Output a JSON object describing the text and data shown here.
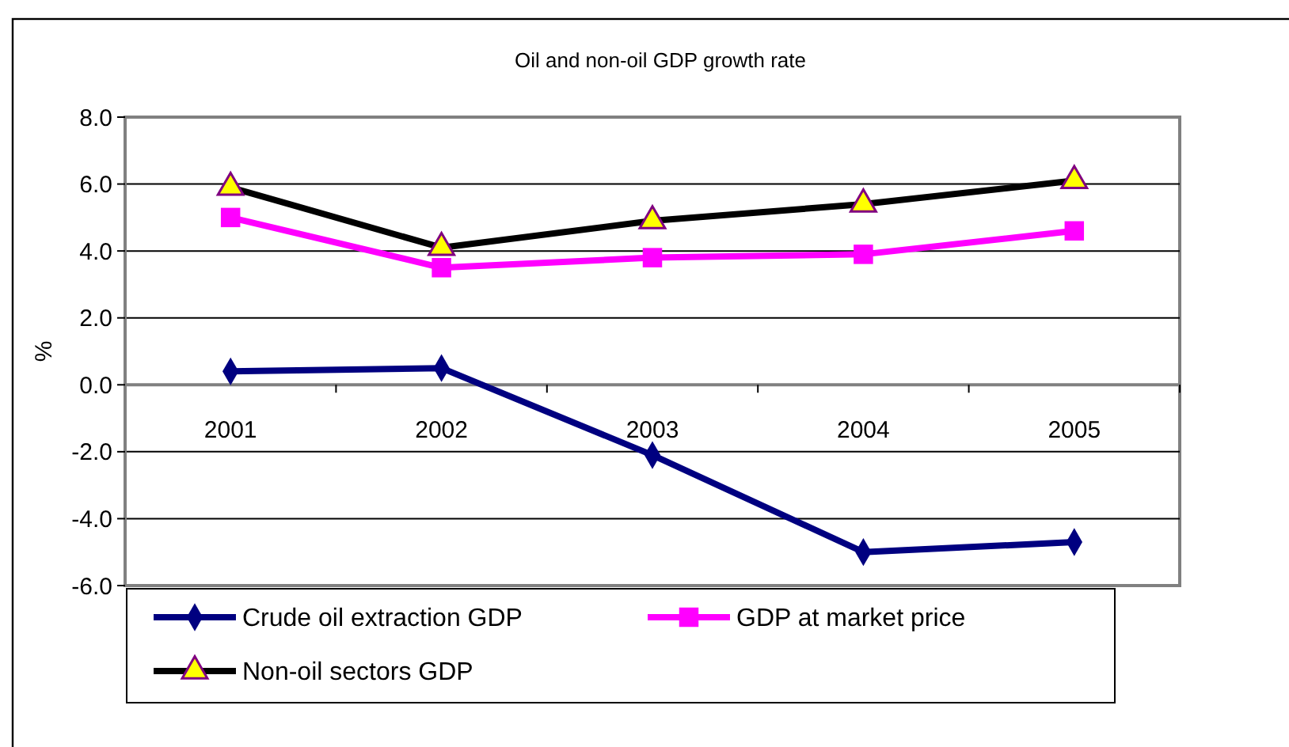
{
  "chart_data": {
    "type": "line",
    "title": "Oil and non-oil GDP growth rate",
    "ylabel": "%",
    "categories": [
      "2001",
      "2002",
      "2003",
      "2004",
      "2005"
    ],
    "series": [
      {
        "name": "Crude oil extraction GDP",
        "color": "#000080",
        "marker": "diamond",
        "values": [
          0.4,
          0.5,
          -2.1,
          -5.0,
          -4.7
        ]
      },
      {
        "name": "GDP at market price",
        "color": "#ff00ff",
        "marker": "square",
        "values": [
          5.0,
          3.5,
          3.8,
          3.9,
          4.6
        ]
      },
      {
        "name": "Non-oil sectors GDP",
        "color": "#000000",
        "marker": "triangle",
        "colors": [
          "#ffff00",
          "#ffff00",
          "#ffff00",
          "#ffff00",
          "#ffff00"
        ],
        "values": [
          5.9,
          4.1,
          4.9,
          5.4,
          6.1
        ]
      }
    ],
    "ylim": [
      -6,
      8
    ],
    "yticks": [
      {
        "value": -6,
        "label": "-6.0"
      },
      {
        "value": -4,
        "label": "-4.0"
      },
      {
        "value": -2,
        "label": "-2.0"
      },
      {
        "value": 0,
        "label": "0.0"
      },
      {
        "value": 2,
        "label": "2.0"
      },
      {
        "value": 4,
        "label": "4.0"
      },
      {
        "value": 6,
        "label": "6.0"
      },
      {
        "value": 8,
        "label": "8.0"
      }
    ],
    "grid": "y",
    "legend": "bottom",
    "line_style": "solid"
  }
}
